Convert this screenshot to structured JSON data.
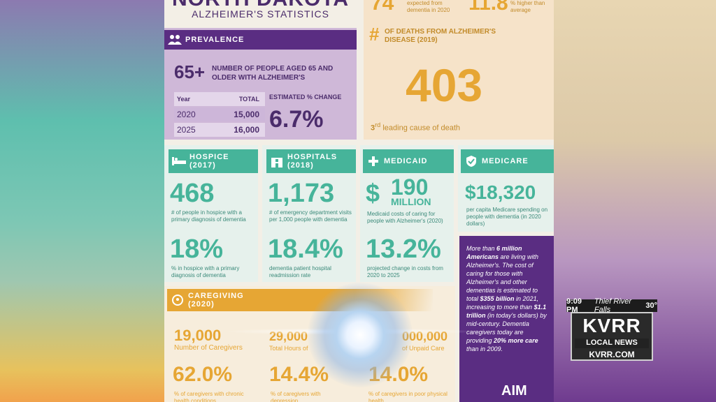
{
  "header": {
    "state": "NORTH DAKOTA",
    "subtitle": "ALZHEIMER'S STATISTICS"
  },
  "top_right": {
    "a": "74",
    "a_label": "expected from dementia in 2020",
    "b": "11.8",
    "b_label": "% higher than average"
  },
  "prevalence": {
    "banner": "PREVALENCE",
    "big": "65+",
    "desc": "NUMBER OF PEOPLE AGED 65 AND OLDER WITH ALZHEIMER'S",
    "col_year": "Year",
    "col_total": "TOTAL",
    "rows": [
      {
        "year": "2020",
        "total": "15,000"
      },
      {
        "year": "2025",
        "total": "16,000"
      }
    ],
    "change_label": "ESTIMATED % CHANGE",
    "change": "6.7%"
  },
  "deaths": {
    "hash": "#",
    "label": "OF DEATHS FROM ALZHEIMER'S DISEASE (2019)",
    "value": "403",
    "rank_num": "3",
    "rank_suffix": "rd",
    "rank_text": "leading cause of death"
  },
  "hospice": {
    "banner": "HOSPICE (2017)",
    "big": "468",
    "desc": "# of people in hospice with a primary diagnosis of dementia",
    "big2": "18%",
    "desc2": "% in hospice with a primary diagnosis of dementia"
  },
  "hospitals": {
    "banner": "HOSPITALS (2018)",
    "big": "1,173",
    "desc": "# of emergency department visits per 1,000 people with dementia",
    "big2": "18.4%",
    "desc2": "dementia patient hospital readmission rate"
  },
  "medicaid": {
    "banner": "MEDICAID",
    "dollar": "$",
    "big": "190",
    "unit": "MILLION",
    "desc": "Medicaid costs of caring for people with Alzheimer's (2020)",
    "big2": "13.2%",
    "desc2": "projected change in costs from 2020 to 2025"
  },
  "medicare": {
    "banner": "MEDICARE",
    "big": "$18,320",
    "desc": "per capita Medicare spending on people with dementia (in 2020 dollars)"
  },
  "caregiving": {
    "banner": "CAREGIVING (2020)",
    "s1": "19,000",
    "l1": "Number of Caregivers",
    "s2": "29,000",
    "l2": "Total Hours of",
    "s3": "000,000",
    "l3": "of Unpaid Care",
    "p1": "62.0%",
    "pl1": "% of caregivers with chronic health conditions",
    "p2": "14.4%",
    "pl2": "% of caregivers with depression",
    "p3": "14.0%",
    "pl3": "% of caregivers in poor physical health"
  },
  "purple_panel": {
    "text1": "More than ",
    "bold1": "6 million Americans",
    "text2": " are living with Alzheimer's.",
    "text3": "The cost of caring for those with Alzheimer's and other dementias is estimated to total ",
    "bold2": "$355 billion",
    "text4": " in 2021, increasing to more than ",
    "bold3": "$1.1 trillion",
    "text5": " (in today's dollars) by mid-century. Dementia caregivers today are providing ",
    "bold4": "20% more care",
    "text6": " than in 2009.",
    "footer": "AIM"
  },
  "ticker": {
    "time": "9:09 PM",
    "city": "Thief River Falls",
    "temp": "30°"
  },
  "station": {
    "call": "KVRR",
    "tag": "LOCAL NEWS",
    "url": "KVRR.COM"
  },
  "colors": {
    "purple": "#5a2d82",
    "teal": "#46b49a",
    "orange": "#e6a634"
  }
}
